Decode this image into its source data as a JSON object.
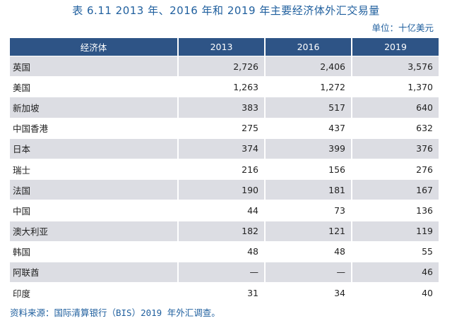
{
  "title": "表 6.11   2013 年、2016 年和 2019 年主要经济体外汇交易量",
  "unit": "单位：十亿美元",
  "table": {
    "headers": [
      "经济体",
      "2013",
      "2016",
      "2019"
    ],
    "rows": [
      [
        "英国",
        "2,726",
        "2,406",
        "3,576"
      ],
      [
        "美国",
        "1,263",
        "1,272",
        "1,370"
      ],
      [
        "新加坡",
        "383",
        "517",
        "640"
      ],
      [
        "中国香港",
        "275",
        "437",
        "632"
      ],
      [
        "日本",
        "374",
        "399",
        "376"
      ],
      [
        "瑞士",
        "216",
        "156",
        "276"
      ],
      [
        "法国",
        "190",
        "181",
        "167"
      ],
      [
        "中国",
        "44",
        "73",
        "136"
      ],
      [
        "澳大利亚",
        "182",
        "121",
        "119"
      ],
      [
        "韩国",
        "48",
        "48",
        "55"
      ],
      [
        "阿联酋",
        "—",
        "—",
        "46"
      ],
      [
        "印度",
        "31",
        "34",
        "40"
      ]
    ]
  },
  "source": "资料来源：国际清算银行（BIS）2019 年外汇调查。",
  "colors": {
    "header_bg": "#2e5486",
    "stripe": "#dcdde3",
    "title": "#1f5f9e"
  }
}
